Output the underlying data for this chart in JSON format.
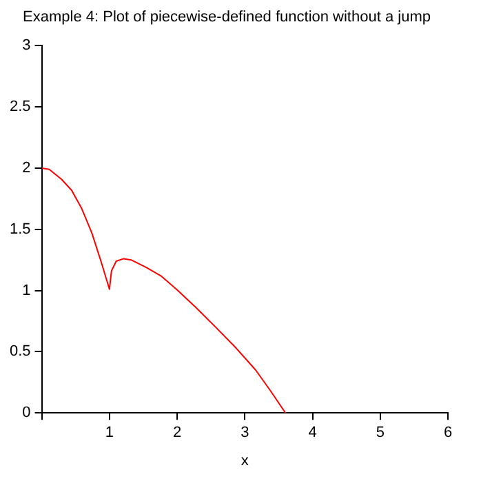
{
  "chart_data": {
    "type": "line",
    "title": "Example 4: Plot of piecewise-defined function without a jump",
    "xlabel": "x",
    "series": [
      {
        "color": "#ff0000",
        "x": [
          0,
          0.11,
          0.29,
          0.44,
          0.59,
          0.74,
          0.88,
          1,
          1.03,
          1.1,
          1.21,
          1.32,
          1.54,
          1.76,
          1.99,
          2.28,
          2.57,
          2.87,
          3.16,
          3.38,
          3.6
        ],
        "values": [
          2,
          1.99,
          1.91,
          1.82,
          1.67,
          1.47,
          1.23,
          1.01,
          1.16,
          1.24,
          1.26,
          1.25,
          1.19,
          1.12,
          1.01,
          0.86,
          0.7,
          0.53,
          0.35,
          0.18,
          0
        ]
      }
    ],
    "xlim": [
      0,
      6
    ],
    "xticks": [
      {
        "value": 0,
        "label": null
      },
      1,
      2,
      3,
      4,
      5,
      6
    ],
    "ylim": [
      0,
      3
    ],
    "yticks": [
      0,
      0.5,
      1,
      1.5,
      2,
      2.5,
      3
    ],
    "grid": false,
    "legend": false,
    "marker": "none",
    "line_style": "solid"
  }
}
